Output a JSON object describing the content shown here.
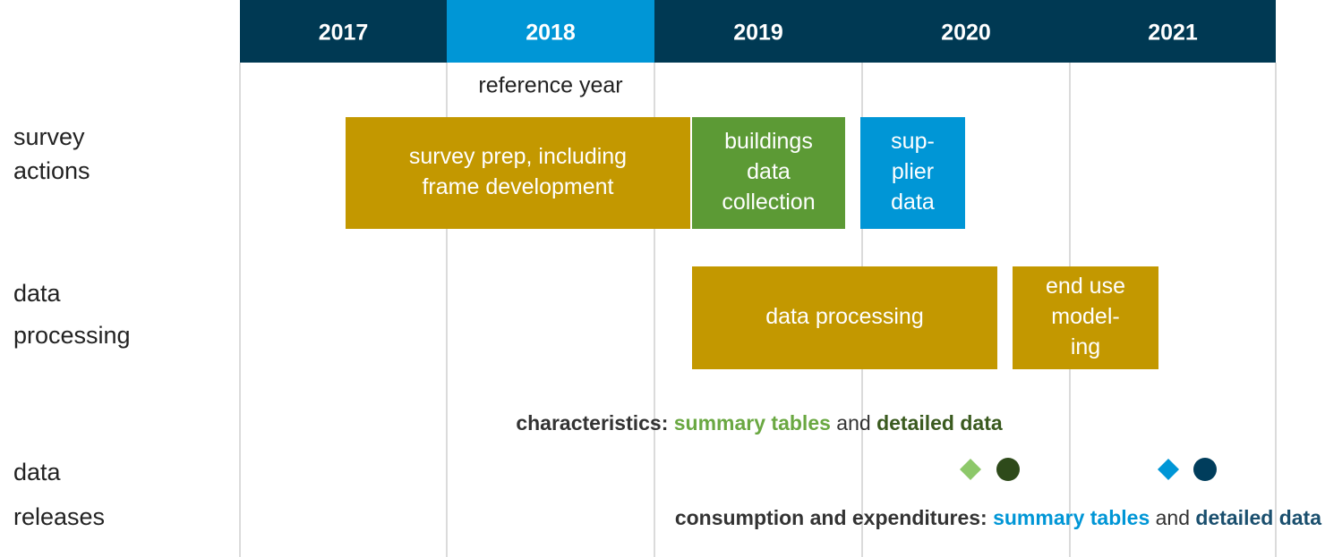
{
  "header": {
    "years": [
      "2017",
      "2018",
      "2019",
      "2020",
      "2021"
    ]
  },
  "reference_note": "reference year",
  "rows": [
    {
      "label": [
        "survey",
        "actions"
      ]
    },
    {
      "label": [
        "data",
        "processing"
      ]
    },
    {
      "label": [
        "data",
        "releases"
      ]
    }
  ],
  "boxes": [
    {
      "lines": [
        "survey prep, including",
        "frame development"
      ]
    },
    {
      "lines": [
        "buildings",
        "data",
        "collection"
      ]
    },
    {
      "lines": [
        "sup-",
        "plier",
        "data"
      ]
    },
    {
      "lines": [
        "data processing"
      ]
    },
    {
      "lines": [
        "end use",
        "model-",
        "ing"
      ]
    }
  ],
  "releases": [
    {
      "parts": [
        "characteristics: ",
        "summary tables",
        " and ",
        "detailed data"
      ]
    },
    {
      "parts": [
        "consumption and expenditures: ",
        "summary tables",
        " and ",
        "detailed data"
      ]
    }
  ]
}
